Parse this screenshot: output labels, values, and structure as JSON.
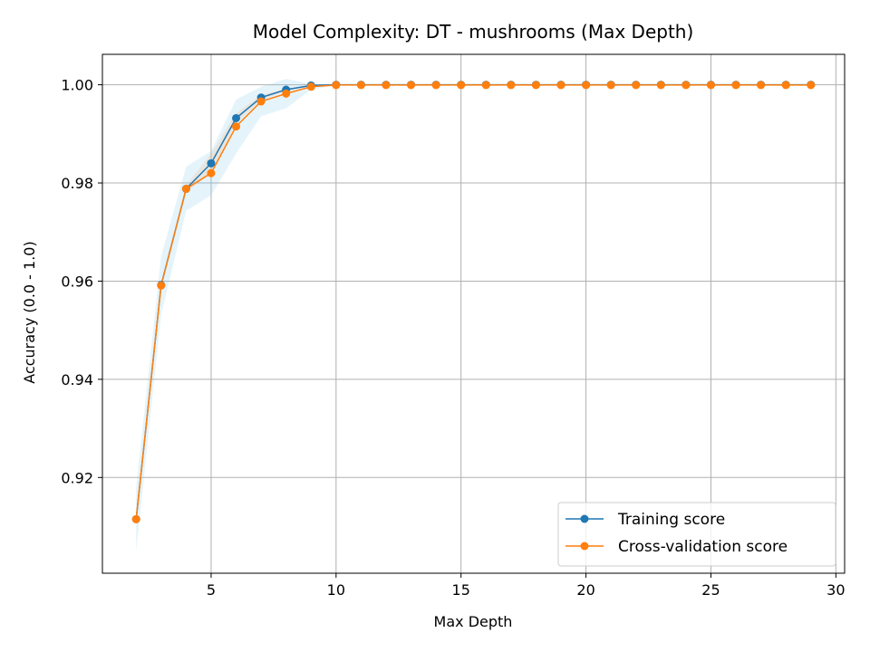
{
  "chart_data": {
    "type": "line",
    "title": "Model Complexity: DT - mushrooms (Max Depth)",
    "xlabel": "Max Depth",
    "ylabel": "Accuracy (0.0 - 1.0)",
    "xlim": [
      0.65,
      30.35
    ],
    "ylim": [
      0.9005,
      1.0062
    ],
    "xticks": [
      5,
      10,
      15,
      20,
      25,
      30
    ],
    "yticks": [
      0.92,
      0.94,
      0.96,
      0.98,
      1.0
    ],
    "ytick_labels": [
      "0.92",
      "0.94",
      "0.96",
      "0.98",
      "1.00"
    ],
    "grid": true,
    "legend_position": "lower-right",
    "x": [
      2,
      3,
      4,
      5,
      6,
      7,
      8,
      9,
      10,
      11,
      12,
      13,
      14,
      15,
      16,
      17,
      18,
      19,
      20,
      21,
      22,
      23,
      24,
      25,
      26,
      27,
      28,
      29
    ],
    "series": [
      {
        "name": "Training score",
        "color": "#1f77b4",
        "band_color": "#ff7f0e",
        "values": [
          0.9115,
          0.9592,
          0.9788,
          0.984,
          0.9932,
          0.9974,
          0.999,
          0.99985,
          1.0,
          1.0,
          1.0,
          1.0,
          1.0,
          1.0,
          1.0,
          1.0,
          1.0,
          1.0,
          1.0,
          1.0,
          1.0,
          1.0,
          1.0,
          1.0,
          1.0,
          1.0,
          1.0,
          1.0
        ],
        "std": [
          0.0008,
          0.0005,
          0.0007,
          0.002,
          0.001,
          0.0005,
          0.0003,
          0.0001,
          0,
          0,
          0,
          0,
          0,
          0,
          0,
          0,
          0,
          0,
          0,
          0,
          0,
          0,
          0,
          0,
          0,
          0,
          0,
          0
        ]
      },
      {
        "name": "Cross-validation score",
        "color": "#ff7f0e",
        "band_color": "#87ceeb",
        "values": [
          0.9115,
          0.9591,
          0.9788,
          0.982,
          0.9915,
          0.9966,
          0.9982,
          0.9996,
          0.99995,
          0.99995,
          0.99995,
          0.99995,
          0.99995,
          0.99995,
          0.99995,
          0.99995,
          0.99995,
          0.99995,
          0.99995,
          0.99995,
          0.99995,
          0.99995,
          0.99995,
          0.99995,
          0.99995,
          0.99995,
          0.99995,
          0.99995
        ],
        "std": [
          0.0065,
          0.006,
          0.0045,
          0.0045,
          0.0055,
          0.003,
          0.003,
          0.0006,
          0.0001,
          0.0001,
          0.0001,
          0.0001,
          0.0001,
          0.0001,
          0.0001,
          0.0001,
          0.0001,
          0.0001,
          0.0001,
          0.0001,
          0.0001,
          0.0001,
          0.0001,
          0.0001,
          0.0001,
          0.0001,
          0.0001,
          0.0001
        ]
      }
    ]
  }
}
